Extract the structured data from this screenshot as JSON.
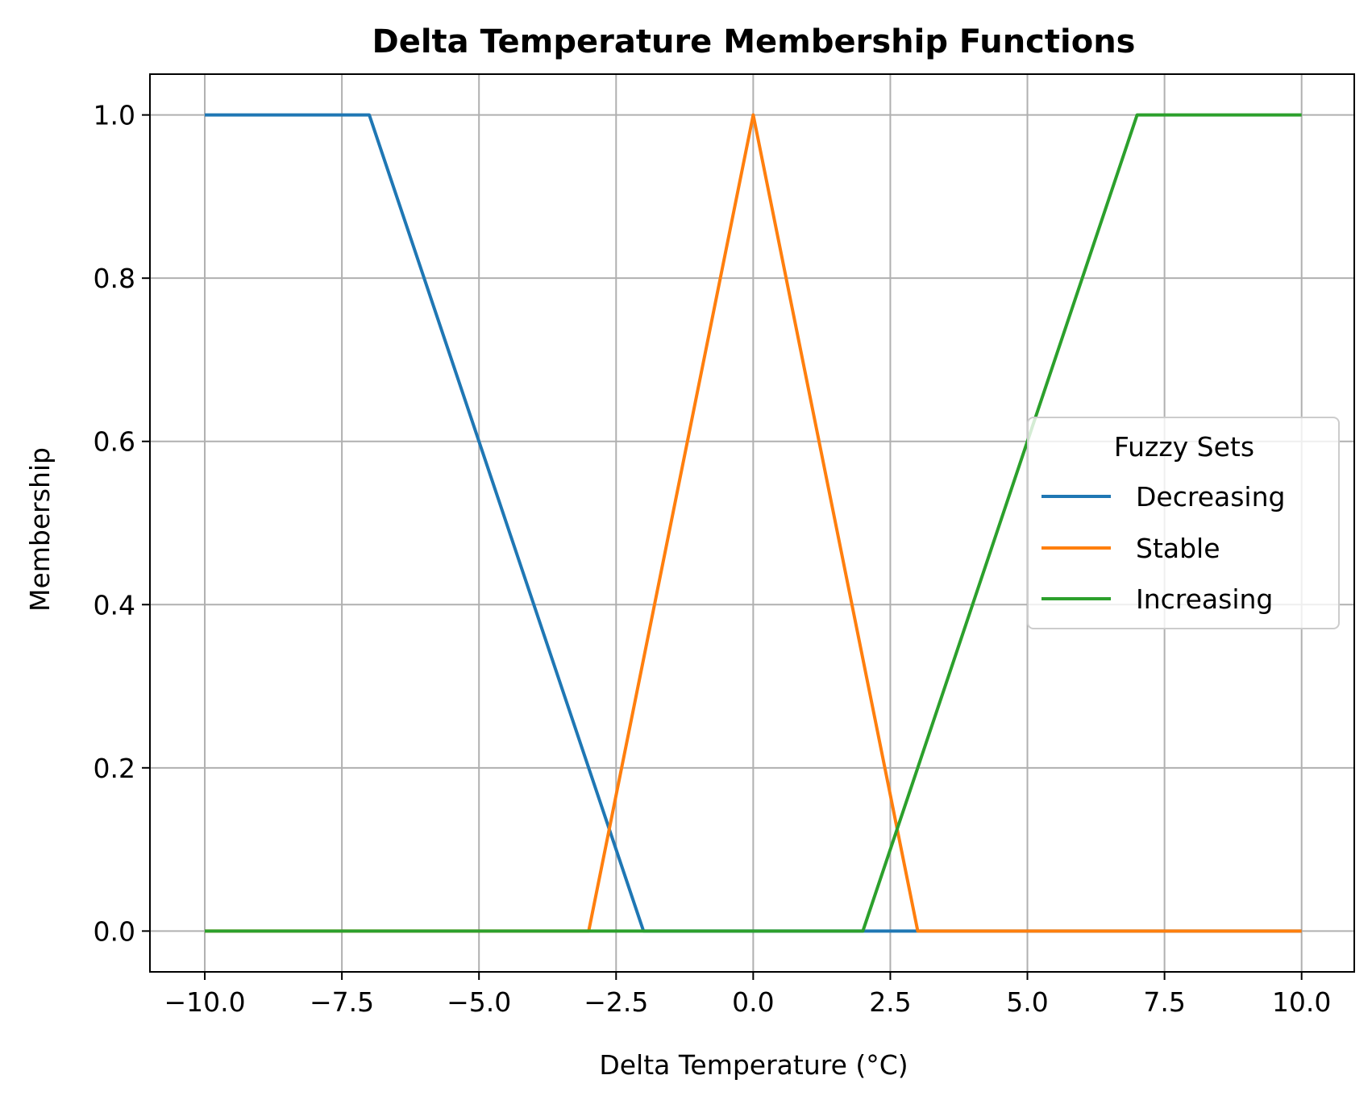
{
  "chart_data": {
    "type": "line",
    "title": "Delta Temperature Membership Functions",
    "xlabel": "Delta Temperature (°C)",
    "ylabel": "Membership",
    "xlim": [
      -11,
      10.96
    ],
    "ylim": [
      -0.05,
      1.05
    ],
    "xticks": [
      -10.0,
      -7.5,
      -5.0,
      -2.5,
      0.0,
      2.5,
      5.0,
      7.5,
      10.0
    ],
    "xtick_labels": [
      "−10.0",
      "−7.5",
      "−5.0",
      "−2.5",
      "0.0",
      "2.5",
      "5.0",
      "7.5",
      "10.0"
    ],
    "yticks": [
      0.0,
      0.2,
      0.4,
      0.6,
      0.8,
      1.0
    ],
    "ytick_labels": [
      "0.0",
      "0.2",
      "0.4",
      "0.6",
      "0.8",
      "1.0"
    ],
    "grid": true,
    "legend": {
      "title": "Fuzzy Sets",
      "placement": "center-right"
    },
    "series": [
      {
        "name": "Decreasing",
        "color": "#1f77b4",
        "points": [
          [
            -10,
            1
          ],
          [
            -7,
            1
          ],
          [
            -2,
            0
          ],
          [
            10,
            0
          ]
        ]
      },
      {
        "name": "Stable",
        "color": "#ff7f0e",
        "points": [
          [
            -10,
            0
          ],
          [
            -3,
            0
          ],
          [
            0,
            1
          ],
          [
            3,
            0
          ],
          [
            10,
            0
          ]
        ]
      },
      {
        "name": "Increasing",
        "color": "#2ca02c",
        "points": [
          [
            -10,
            0
          ],
          [
            2,
            0
          ],
          [
            7,
            1
          ],
          [
            10,
            1
          ]
        ]
      }
    ]
  }
}
